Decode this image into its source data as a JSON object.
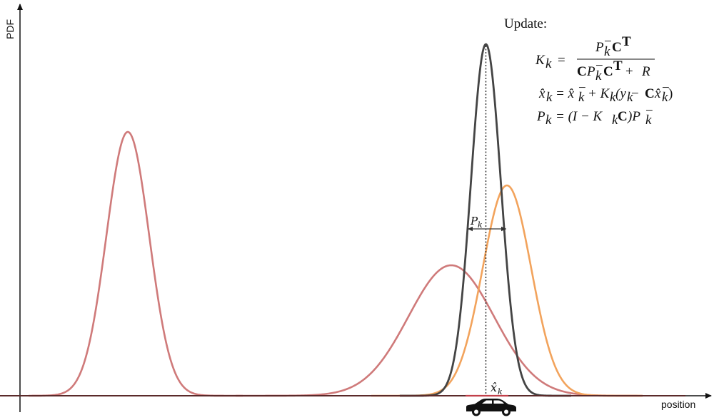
{
  "axes": {
    "y_label": "PDF",
    "x_label": "position"
  },
  "colors": {
    "axis": "#111111",
    "baseline": "#5a2a2a",
    "prior_curve": "#cf7a7a",
    "prediction_curve": "#cf7a7a",
    "measurement_curve": "#f2a35c",
    "update_curve": "#444444"
  },
  "icons": {
    "vehicle": "car-icon"
  },
  "annotations": {
    "covariance_label": "P",
    "covariance_sub": "k",
    "estimate_label": "x̂",
    "estimate_sub": "k"
  },
  "update_equations": {
    "title": "Update:",
    "gain_lhs": "K",
    "gain_lhs_sub": "k",
    "gain_eq": "=",
    "gain_num_a": "P",
    "gain_num_sup": "−",
    "gain_num_sub": "k",
    "gain_num_b": "C",
    "gain_num_T": "T",
    "gain_den_a": "C",
    "gain_den_b": "P",
    "gain_den_sup": "−",
    "gain_den_sub": "k",
    "gain_den_c": "C",
    "gain_den_T": "T",
    "gain_den_d": "+ ",
    "gain_den_R": "R",
    "state_eq": "x̂",
    "state_eq_sub": "k",
    "state_rhs": "= x̂",
    "state_rhs_sup": "−",
    "state_rhs_sub": "k",
    "state_rhs_b": "+ K",
    "state_rhs_b_sub": "k",
    "state_rhs_c": "(y",
    "state_rhs_c_sub": "k",
    "state_rhs_d": " − ",
    "state_rhs_C": "C",
    "state_rhs_e": "x̂",
    "state_rhs_e_sup": "−",
    "state_rhs_e_sub": "k",
    "state_rhs_f": ")",
    "cov_lhs": "P",
    "cov_lhs_sub": "k",
    "cov_rhs_a": "= (I − K",
    "cov_rhs_a_sub": "k",
    "cov_rhs_C": "C",
    "cov_rhs_b": ")P",
    "cov_rhs_b_sup": "−",
    "cov_rhs_b_sub": "k"
  }
}
